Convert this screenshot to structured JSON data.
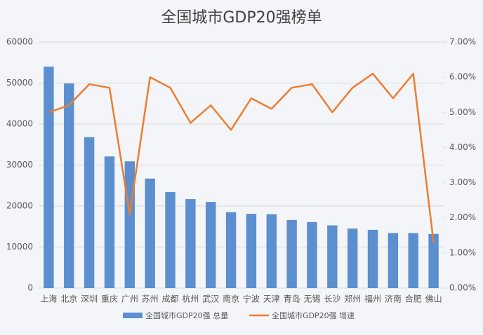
{
  "chart_data": {
    "type": "bar-line",
    "title": "全国城市GDP20强榜单",
    "categories": [
      "上海",
      "北京",
      "深圳",
      "重庆",
      "广州",
      "苏州",
      "成都",
      "杭州",
      "武汉",
      "南京",
      "宁波",
      "天津",
      "青岛",
      "无锡",
      "长沙",
      "郑州",
      "福州",
      "济南",
      "合肥",
      "佛山"
    ],
    "series": [
      {
        "name": "全国城市GDP20强 总量",
        "type": "bar",
        "color": "#5b8fd0",
        "values": [
          54000,
          49900,
          36800,
          32100,
          30900,
          26700,
          23400,
          21700,
          21000,
          18500,
          18100,
          18000,
          16600,
          16100,
          15300,
          14500,
          14200,
          13400,
          13400,
          13200
        ]
      },
      {
        "name": "全国城市GDP20强 增速",
        "type": "line",
        "axis": "y2",
        "color": "#ed7d31",
        "values": [
          5.0,
          5.2,
          5.8,
          5.7,
          2.1,
          6.0,
          5.7,
          4.7,
          5.2,
          4.5,
          5.4,
          5.1,
          5.7,
          5.8,
          5.0,
          5.7,
          6.1,
          5.4,
          6.1,
          1.3
        ]
      }
    ],
    "ylim": [
      0,
      60000
    ],
    "yticks": [
      0,
      10000,
      20000,
      30000,
      40000,
      50000,
      60000
    ],
    "y2lim": [
      0,
      7
    ],
    "y2ticks": [
      {
        "value": 0,
        "label": "0.00%"
      },
      {
        "value": 1,
        "label": "1.00%"
      },
      {
        "value": 2,
        "label": "2.00%"
      },
      {
        "value": 3,
        "label": "3.00%"
      },
      {
        "value": 4,
        "label": "4.00%"
      },
      {
        "value": 5,
        "label": "5.00%"
      },
      {
        "value": 6,
        "label": "6.00%"
      },
      {
        "value": 7,
        "label": "7.00%"
      }
    ],
    "grid": true,
    "legend": "bottom"
  }
}
